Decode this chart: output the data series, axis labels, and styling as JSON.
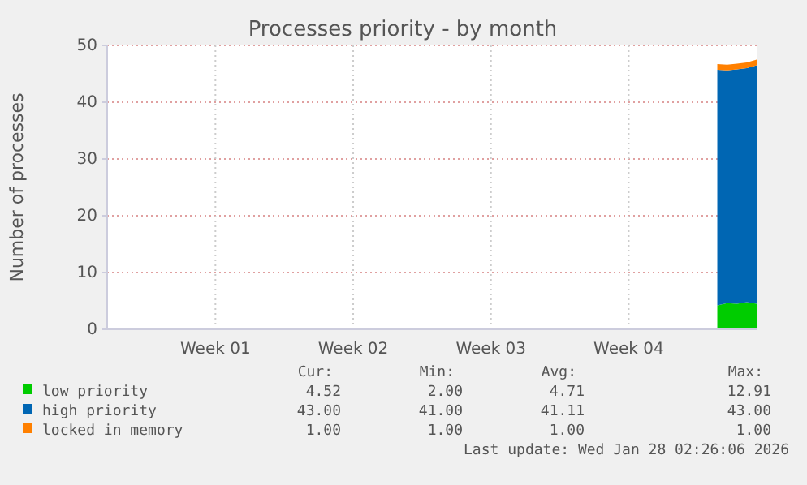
{
  "chart_data": {
    "type": "area",
    "stacked": true,
    "title": "Processes priority - by month",
    "ylabel": "Number of processes",
    "categories": [
      null,
      null,
      null,
      null,
      null,
      null,
      null,
      null,
      null,
      null,
      null,
      "Week 01",
      null,
      null,
      null,
      null,
      null,
      null,
      null,
      null,
      null,
      null,
      null,
      null,
      null,
      "Week 02",
      null,
      null,
      null,
      null,
      null,
      null,
      null,
      null,
      null,
      null,
      null,
      null,
      null,
      "Week 03",
      null,
      null,
      null,
      null,
      null,
      null,
      null,
      null,
      null,
      null,
      null,
      null,
      null,
      "Week 04",
      null,
      null,
      null,
      null,
      null,
      null,
      null,
      null,
      null,
      null,
      null,
      null,
      null
    ],
    "series": [
      {
        "name": "low priority",
        "color": "#00cc00",
        "values": [
          null,
          null,
          null,
          null,
          null,
          null,
          null,
          null,
          null,
          null,
          null,
          null,
          null,
          null,
          null,
          null,
          null,
          null,
          null,
          null,
          null,
          null,
          null,
          null,
          null,
          null,
          null,
          null,
          null,
          null,
          null,
          null,
          null,
          null,
          null,
          null,
          null,
          null,
          null,
          null,
          null,
          null,
          null,
          null,
          null,
          null,
          null,
          null,
          null,
          null,
          null,
          null,
          null,
          null,
          null,
          null,
          null,
          null,
          null,
          null,
          null,
          null,
          4.2,
          4.6,
          4.5,
          4.8,
          4.5
        ]
      },
      {
        "name": "high priority",
        "color": "#0066b3",
        "values": [
          null,
          null,
          null,
          null,
          null,
          null,
          null,
          null,
          null,
          null,
          null,
          null,
          null,
          null,
          null,
          null,
          null,
          null,
          null,
          null,
          null,
          null,
          null,
          null,
          null,
          null,
          null,
          null,
          null,
          null,
          null,
          null,
          null,
          null,
          null,
          null,
          null,
          null,
          null,
          null,
          null,
          null,
          null,
          null,
          null,
          null,
          null,
          null,
          null,
          null,
          null,
          null,
          null,
          null,
          null,
          null,
          null,
          null,
          null,
          null,
          null,
          null,
          41.5,
          41,
          41.3,
          41.2,
          42
        ]
      },
      {
        "name": "locked in memory",
        "color": "#ff8000",
        "values": [
          null,
          null,
          null,
          null,
          null,
          null,
          null,
          null,
          null,
          null,
          null,
          null,
          null,
          null,
          null,
          null,
          null,
          null,
          null,
          null,
          null,
          null,
          null,
          null,
          null,
          null,
          null,
          null,
          null,
          null,
          null,
          null,
          null,
          null,
          null,
          null,
          null,
          null,
          null,
          null,
          null,
          null,
          null,
          null,
          null,
          null,
          null,
          null,
          null,
          null,
          null,
          null,
          null,
          null,
          null,
          null,
          null,
          null,
          null,
          null,
          null,
          null,
          1,
          1,
          1,
          1,
          1
        ]
      }
    ],
    "ylim": [
      0,
      50
    ],
    "yticks": [
      0,
      10,
      20,
      30,
      40,
      50
    ],
    "grid": true,
    "legend": "bottom",
    "annotations": [
      "Cur:",
      "Min:",
      "Avg:",
      "Max:",
      "4.52",
      "2.00",
      "4.71",
      "12.91",
      "43.00",
      "41.00",
      "41.11",
      "43.00",
      "1.00",
      "1.00",
      "1.00",
      "1.00",
      "Last update: Wed Jan 28 02:26:06 2026"
    ]
  }
}
